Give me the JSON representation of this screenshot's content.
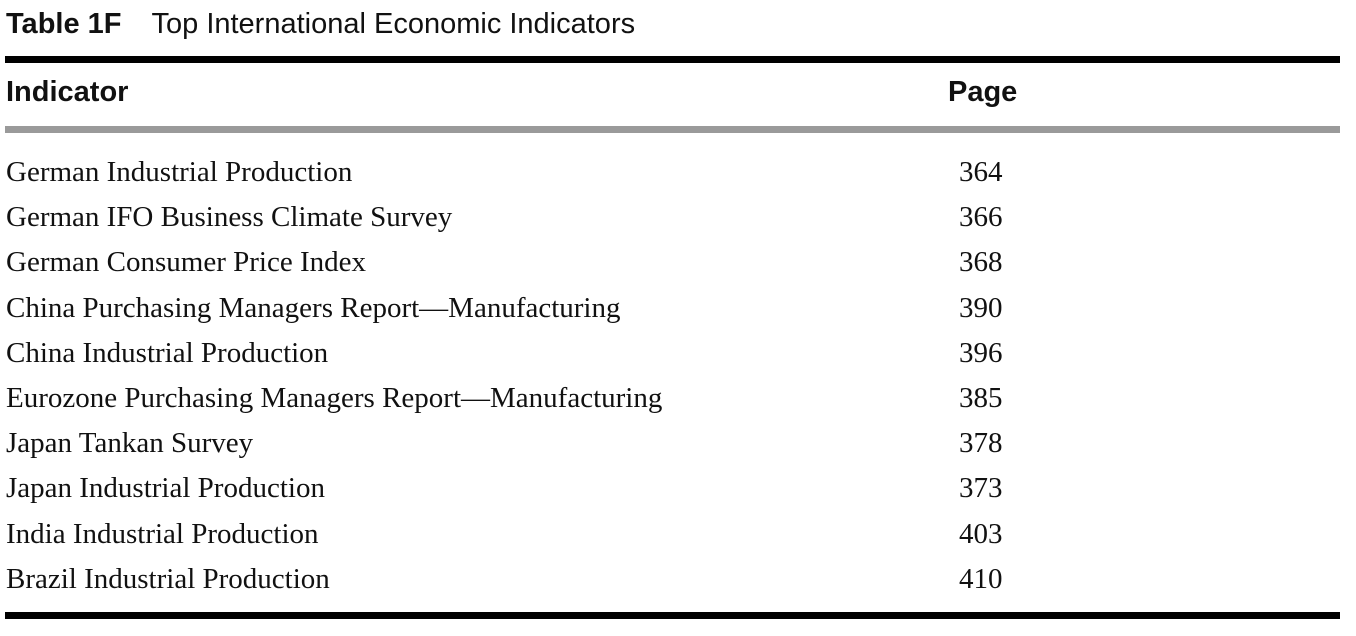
{
  "caption": {
    "number": "Table 1F",
    "title": "Top International Economic Indicators"
  },
  "table": {
    "headers": {
      "indicator": "Indicator",
      "page": "Page"
    },
    "rows": [
      {
        "indicator": "German Industrial Production",
        "page": "364"
      },
      {
        "indicator": "German IFO Business Climate Survey",
        "page": "366"
      },
      {
        "indicator": "German Consumer Price Index",
        "page": "368"
      },
      {
        "indicator": "China Purchasing Managers Report—Manufacturing",
        "page": "390"
      },
      {
        "indicator": "China Industrial Production",
        "page": "396"
      },
      {
        "indicator": "Eurozone Purchasing Managers Report—Manufacturing",
        "page": "385"
      },
      {
        "indicator": "Japan Tankan Survey",
        "page": "378"
      },
      {
        "indicator": "Japan Industrial Production",
        "page": "373"
      },
      {
        "indicator": "India Industrial Production",
        "page": "403"
      },
      {
        "indicator": "Brazil Industrial Production",
        "page": "410"
      }
    ]
  },
  "colors": {
    "top_rule": "#000000",
    "header_rule": "#9a9a9a",
    "bottom_rule": "#000000"
  }
}
